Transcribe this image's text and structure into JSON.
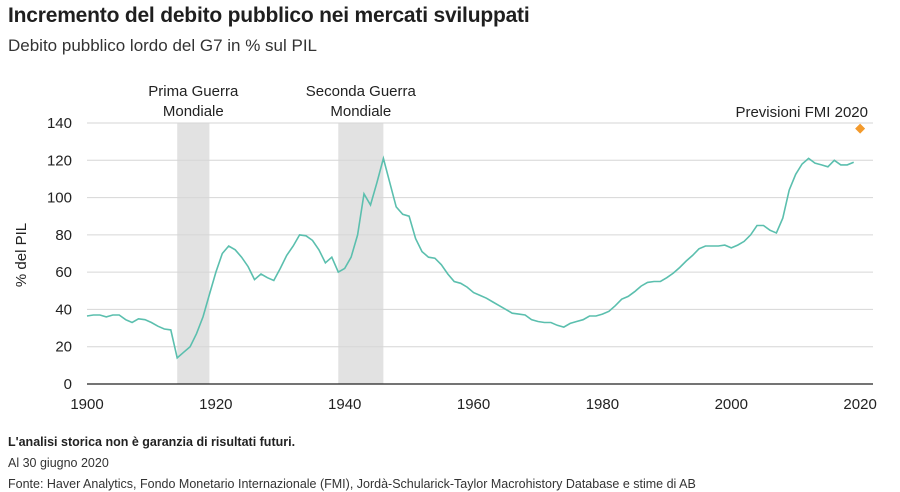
{
  "title": "Incremento del debito pubblico nei mercati sviluppati",
  "subtitle": "Debito pubblico lordo del G7 in % sul PIL",
  "footer": {
    "disclaimer": "L'analisi storica non è garanzia di risultati futuri.",
    "date": "Al 30 giugno 2020",
    "source": "Fonte: Haver Analytics, Fondo Monetario Internazionale (FMI), Jordà-Schularick-Taylor Macrohistory Database e stime di AB"
  },
  "colors": {
    "line": "#5bbfae",
    "forecast": "#f39a2c",
    "band": "#e2e2e2",
    "grid": "#d6d6d6",
    "axis": "#222222"
  },
  "chart_data": {
    "type": "line",
    "title": "Incremento del debito pubblico nei mercati sviluppati",
    "subtitle": "Debito pubblico lordo del G7 in % sul PIL",
    "xlabel": "",
    "ylabel": "% del PIL",
    "xlim": [
      1900,
      2022
    ],
    "ylim": [
      0,
      140
    ],
    "xticks": [
      1900,
      1920,
      1940,
      1960,
      1980,
      2000,
      2020
    ],
    "yticks": [
      0,
      20,
      40,
      60,
      80,
      100,
      120,
      140
    ],
    "grid": "horizontal",
    "shaded_periods": [
      {
        "label_line1": "Prima Guerra",
        "label_line2": "Mondiale",
        "start": 1914,
        "end": 1919
      },
      {
        "label_line1": "Seconda Guerra",
        "label_line2": "Mondiale",
        "start": 1939,
        "end": 1946
      }
    ],
    "series": [
      {
        "x": [
          1900,
          1901,
          1902,
          1903,
          1904,
          1905,
          1906,
          1907,
          1908,
          1909,
          1910,
          1911,
          1912,
          1913,
          1914,
          1915,
          1916,
          1917,
          1918,
          1919,
          1920,
          1921,
          1922,
          1923,
          1924,
          1925,
          1926,
          1927,
          1928,
          1929,
          1930,
          1931,
          1932,
          1933,
          1934,
          1935,
          1936,
          1937,
          1938,
          1939,
          1940,
          1941,
          1942,
          1943,
          1944,
          1945,
          1946,
          1947,
          1948,
          1949,
          1950,
          1951,
          1952,
          1953,
          1954,
          1955,
          1956,
          1957,
          1958,
          1959,
          1960,
          1961,
          1962,
          1963,
          1964,
          1965,
          1966,
          1967,
          1968,
          1969,
          1970,
          1971,
          1972,
          1973,
          1974,
          1975,
          1976,
          1977,
          1978,
          1979,
          1980,
          1981,
          1982,
          1983,
          1984,
          1985,
          1986,
          1987,
          1988,
          1989,
          1990,
          1991,
          1992,
          1993,
          1994,
          1995,
          1996,
          1997,
          1998,
          1999,
          2000,
          2001,
          2002,
          2003,
          2004,
          2005,
          2006,
          2007,
          2008,
          2009,
          2010,
          2011,
          2012,
          2013,
          2014,
          2015,
          2016,
          2017,
          2018,
          2019
        ],
        "values": [
          36.5,
          37,
          37,
          36,
          37,
          37,
          34.5,
          33,
          35,
          34.5,
          33,
          31,
          29.5,
          29,
          14,
          17,
          20,
          27,
          36,
          48,
          60,
          70,
          74,
          72,
          68,
          63,
          56,
          59,
          57,
          55.5,
          62,
          69,
          74,
          80,
          79.5,
          77,
          72,
          65,
          68,
          60,
          62,
          68,
          80,
          102,
          96,
          108,
          121,
          108,
          95,
          91,
          90,
          78,
          71,
          68,
          67.5,
          64,
          59,
          55,
          54,
          52,
          49,
          47.5,
          46,
          44,
          42,
          40,
          38,
          37.5,
          37,
          34.5,
          33.5,
          33,
          33,
          31.5,
          30.5,
          32.5,
          33.5,
          34.5,
          36.5,
          36.5,
          37.5,
          39,
          42,
          45.5,
          47,
          49.5,
          52.5,
          54.5,
          55,
          55,
          57,
          59.5,
          62.5,
          66,
          69,
          72.5,
          74,
          74,
          74,
          74.5,
          73,
          74.5,
          76.5,
          80,
          85,
          85,
          82.5,
          81,
          89,
          104,
          112.5,
          118,
          121,
          118.5,
          117.5,
          116.5,
          120,
          117.5,
          117.5,
          119
        ]
      }
    ],
    "forecast": {
      "label": "Previsioni FMI 2020",
      "x": 2020,
      "value": 137
    }
  }
}
